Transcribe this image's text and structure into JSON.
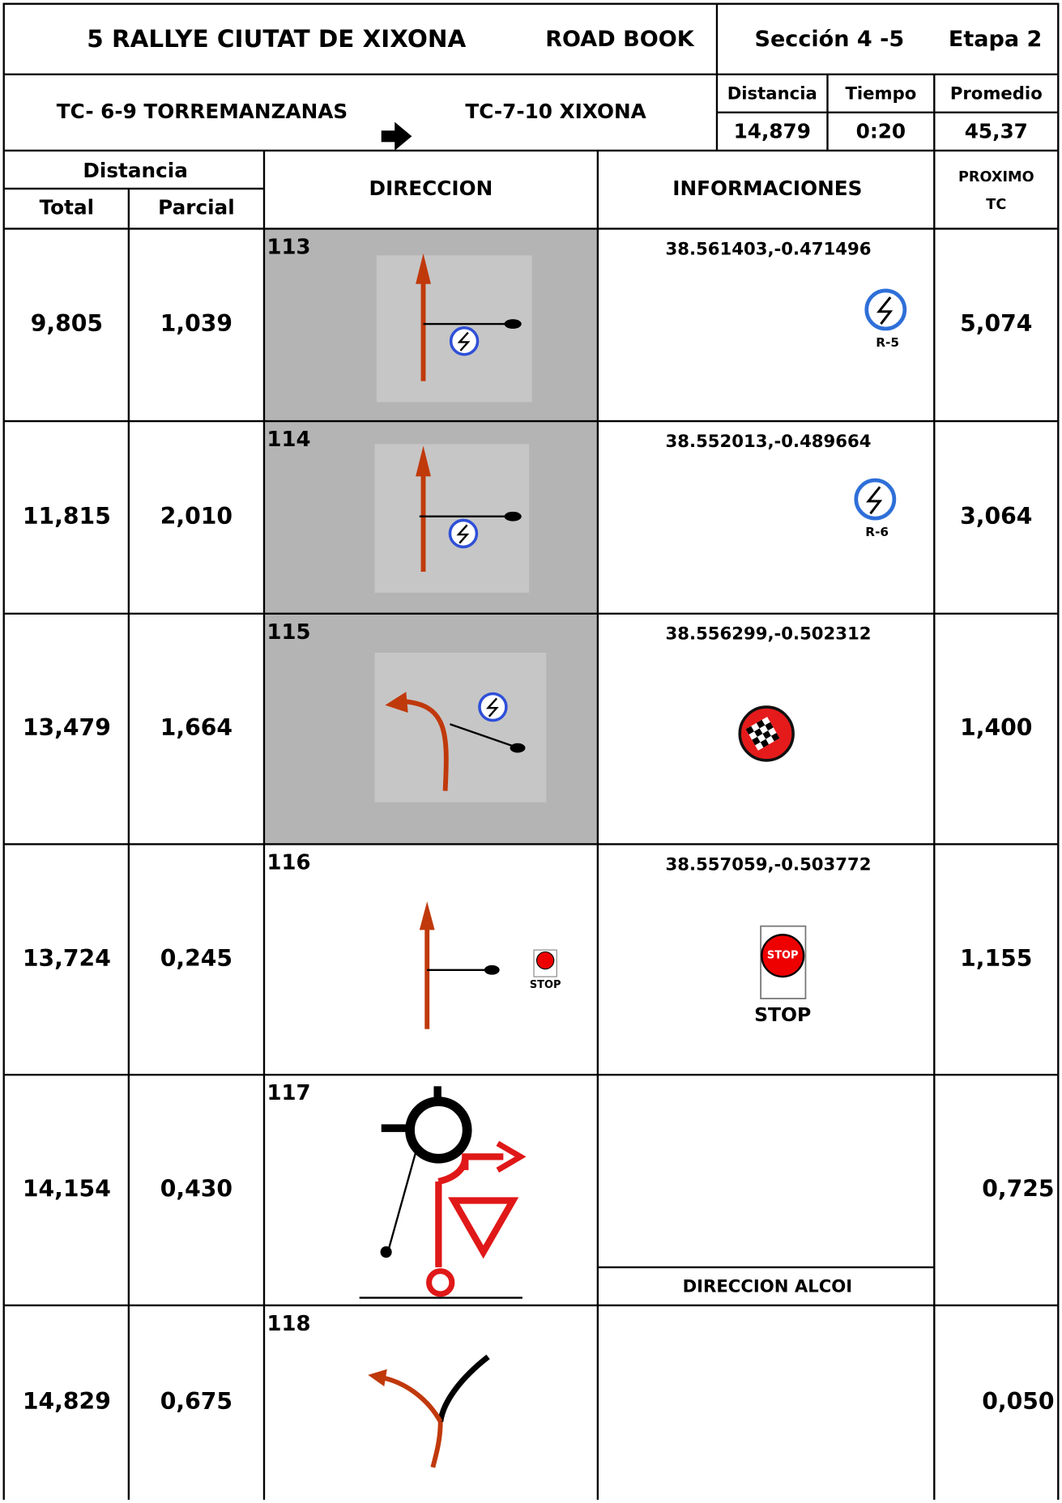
{
  "header": {
    "title": "5 RALLYE CIUTAT DE XIXONA",
    "doc_type": "ROAD BOOK",
    "section": "Sección 4 -5",
    "stage": "Etapa 2"
  },
  "route": {
    "from": "TC- 6-9 TORREMANZANAS",
    "to": "TC-7-10 XIXONA"
  },
  "summary": {
    "labels": [
      "Distancia",
      "Tiempo",
      "Promedio"
    ],
    "values": [
      "14,879",
      "0:20",
      "45,37"
    ]
  },
  "columns": {
    "distancia": "Distancia",
    "total": "Total",
    "parcial": "Parcial",
    "direccion": "DIRECCION",
    "informaciones": "INFORMACIONES",
    "proximo": [
      "PROXIMO",
      "TC"
    ]
  },
  "rows": [
    {
      "total": "9,805",
      "parcial": "1,039",
      "number": "113",
      "coords": "38.561403,-0.471496",
      "sign": "R-5",
      "proximo": "5,074"
    },
    {
      "total": "11,815",
      "parcial": "2,010",
      "number": "114",
      "coords": "38.552013,-0.489664",
      "sign": "R-6",
      "proximo": "3,064"
    },
    {
      "total": "13,479",
      "parcial": "1,664",
      "number": "115",
      "coords": "38.556299,-0.502312",
      "proximo": "1,400"
    },
    {
      "total": "13,724",
      "parcial": "0,245",
      "number": "116",
      "coords": "38.557059,-0.503772",
      "sign_small": "STOP",
      "sign_large": "STOP",
      "sign_text": "STOP",
      "proximo": "1,155"
    },
    {
      "total": "14,154",
      "parcial": "0,430",
      "number": "117",
      "note": "DIRECCION ALCOI",
      "proximo": "0,725"
    },
    {
      "total": "14,829",
      "parcial": "0,675",
      "number": "118",
      "proximo": "0,050"
    }
  ]
}
